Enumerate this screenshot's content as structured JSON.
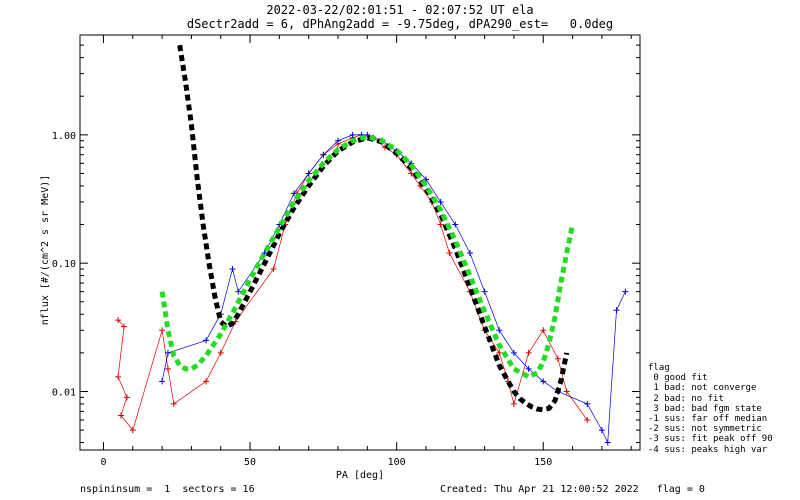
{
  "chart_data": {
    "type": "scatter",
    "title": "2022-03-22/02:01:51 - 02:07:52 UT ela",
    "subtitle": "dSectr2add = 6, dPhAng2add = -9.75deg, dPA290_est=   0.0deg",
    "xlabel": "PA [deg]",
    "ylabel": "nflux [#/(cm^2 s sr MeV)]",
    "xlim": [
      -8,
      183
    ],
    "ylim": [
      0.0035,
      6.0
    ],
    "yscale": "log",
    "x_ticks": [
      0,
      50,
      100,
      150
    ],
    "x_tick_labels": [
      "0",
      "50",
      "100",
      "150"
    ],
    "y_ticks": [
      0.01,
      0.1,
      1.0
    ],
    "y_tick_labels": [
      "0.01",
      "0.10",
      "1.00"
    ],
    "grid": false,
    "series": [
      {
        "color": "#dd0000",
        "marker": "+",
        "x": [
          5,
          7,
          5,
          8,
          6,
          10,
          20,
          22,
          24,
          35,
          40,
          45,
          58,
          62,
          66,
          70,
          75,
          80,
          85,
          88,
          92,
          96,
          100,
          105,
          108,
          112,
          115,
          118,
          125,
          130,
          135,
          138,
          140,
          145,
          150,
          155,
          158,
          165
        ],
        "y": [
          0.036,
          0.032,
          0.013,
          0.009,
          0.0065,
          0.005,
          0.03,
          0.015,
          0.008,
          0.012,
          0.02,
          0.035,
          0.09,
          0.2,
          0.35,
          0.5,
          0.7,
          0.85,
          0.95,
          1.0,
          0.95,
          0.8,
          0.7,
          0.5,
          0.4,
          0.3,
          0.2,
          0.12,
          0.06,
          0.03,
          0.02,
          0.012,
          0.008,
          0.02,
          0.03,
          0.018,
          0.01,
          0.006
        ]
      },
      {
        "color": "#0000dd",
        "marker": "+",
        "x": [
          20,
          22,
          35,
          40,
          44,
          46,
          55,
          60,
          65,
          70,
          75,
          80,
          85,
          88,
          90,
          92,
          95,
          100,
          105,
          110,
          115,
          120,
          125,
          130,
          135,
          140,
          145,
          150,
          155,
          165,
          170,
          172,
          175,
          178
        ],
        "y": [
          0.012,
          0.02,
          0.025,
          0.04,
          0.09,
          0.06,
          0.12,
          0.2,
          0.35,
          0.5,
          0.7,
          0.9,
          1.0,
          1.0,
          1.0,
          0.95,
          0.9,
          0.75,
          0.6,
          0.45,
          0.3,
          0.2,
          0.12,
          0.06,
          0.03,
          0.02,
          0.015,
          0.012,
          0.01,
          0.008,
          0.005,
          0.004,
          0.043,
          0.06
        ]
      }
    ],
    "fit_curves": [
      {
        "color": "#000000",
        "style": "dashed-thick",
        "x": [
          26,
          28,
          30,
          32,
          34,
          36,
          38,
          40,
          42,
          44,
          46,
          50,
          55,
          60,
          65,
          70,
          75,
          80,
          85,
          90,
          95,
          100,
          105,
          110,
          115,
          120,
          125,
          130,
          135,
          138,
          140,
          142,
          144,
          146,
          148,
          150,
          152,
          154,
          156,
          158
        ],
        "y": [
          5.0,
          2.6,
          1.2,
          0.45,
          0.2,
          0.1,
          0.055,
          0.035,
          0.032,
          0.034,
          0.04,
          0.06,
          0.1,
          0.17,
          0.27,
          0.4,
          0.57,
          0.75,
          0.88,
          0.95,
          0.88,
          0.72,
          0.55,
          0.38,
          0.24,
          0.13,
          0.065,
          0.032,
          0.016,
          0.012,
          0.01,
          0.0088,
          0.0081,
          0.0076,
          0.0073,
          0.0072,
          0.0074,
          0.0085,
          0.012,
          0.02
        ]
      },
      {
        "color": "#22dd22",
        "style": "dashed-thick",
        "x": [
          20,
          22,
          24,
          26,
          28,
          30,
          32,
          35,
          40,
          45,
          50,
          55,
          60,
          65,
          70,
          75,
          80,
          85,
          90,
          95,
          100,
          105,
          110,
          115,
          120,
          125,
          130,
          135,
          140,
          145,
          148,
          150,
          152,
          154,
          156,
          158,
          160
        ],
        "y": [
          0.06,
          0.03,
          0.019,
          0.016,
          0.015,
          0.015,
          0.016,
          0.019,
          0.028,
          0.045,
          0.075,
          0.12,
          0.19,
          0.3,
          0.44,
          0.6,
          0.77,
          0.9,
          0.97,
          0.9,
          0.76,
          0.58,
          0.4,
          0.26,
          0.15,
          0.08,
          0.042,
          0.023,
          0.015,
          0.013,
          0.014,
          0.017,
          0.024,
          0.038,
          0.07,
          0.12,
          0.2
        ]
      }
    ]
  },
  "legend": {
    "title": "flag",
    "items": [
      " 0 good fit",
      " 1 bad: not converge",
      " 2 bad: no fit",
      " 3 bad: bad fgm state",
      "-1 sus: far off median",
      "-2 sus: not symmetric",
      "-3 sus: fit peak off 90",
      "-4 sus: peaks high var"
    ]
  },
  "footer": {
    "left": "nspininsum =  1  sectors = 16",
    "right": "Created: Thu Apr 21 12:00:52 2022   flag = 0"
  }
}
